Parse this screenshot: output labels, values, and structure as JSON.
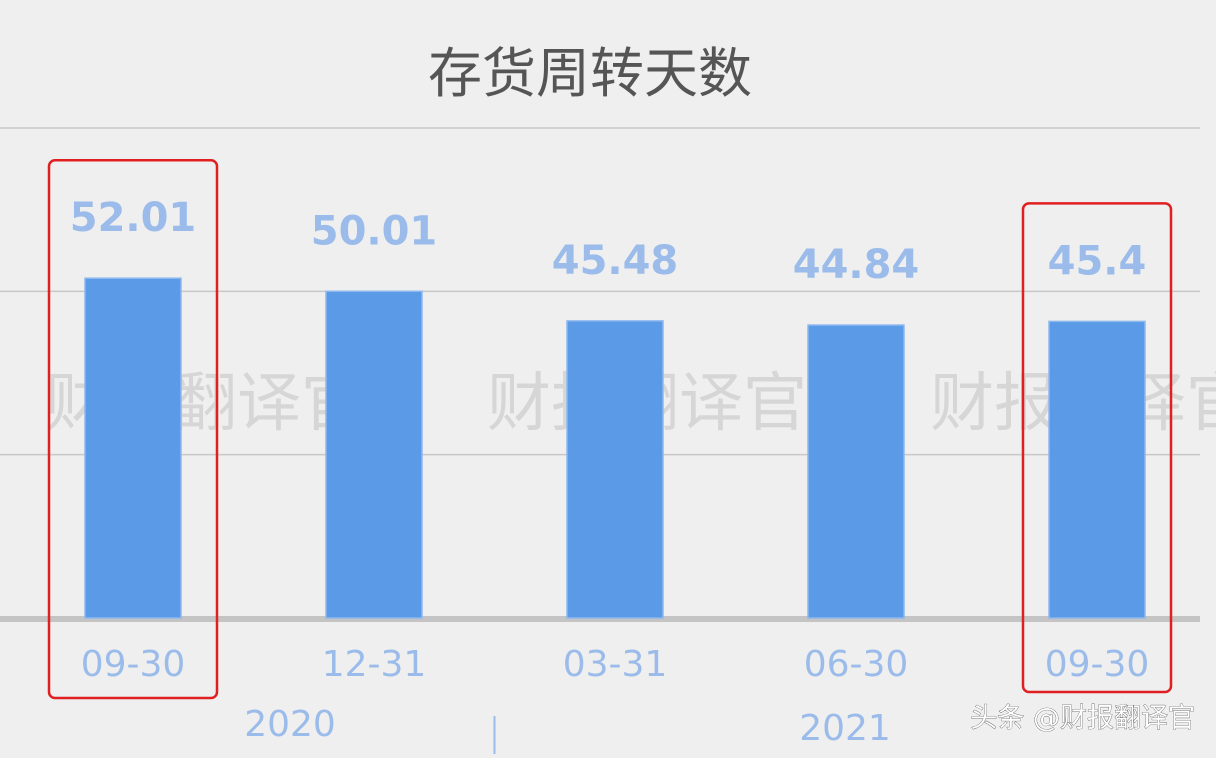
{
  "chart_data": {
    "type": "bar",
    "title": "存货周转天数",
    "categories": [
      "09-30",
      "12-31",
      "03-31",
      "06-30",
      "09-30"
    ],
    "values": [
      52.01,
      50.01,
      45.48,
      44.84,
      45.4
    ],
    "data_labels": [
      "52.01",
      "50.01",
      "45.48",
      "44.84",
      "45.4"
    ],
    "year_groups": [
      {
        "label": "2020",
        "categories": [
          "09-30",
          "12-31"
        ]
      },
      {
        "label": "2021",
        "categories": [
          "03-31",
          "06-30",
          "09-30"
        ]
      }
    ],
    "ylim": [
      0,
      75
    ],
    "gridlines": [
      25,
      50,
      75
    ],
    "grid": true,
    "highlighted_categories_index": [
      0,
      4
    ],
    "colors": {
      "bar": "#5a9ae6",
      "label": "#9bbcea",
      "highlight": "#e02020",
      "grid": "#c8c8c8",
      "background": "#efefef"
    }
  },
  "watermark": "财报翻译官",
  "credit": "头条 @财报翻译官"
}
